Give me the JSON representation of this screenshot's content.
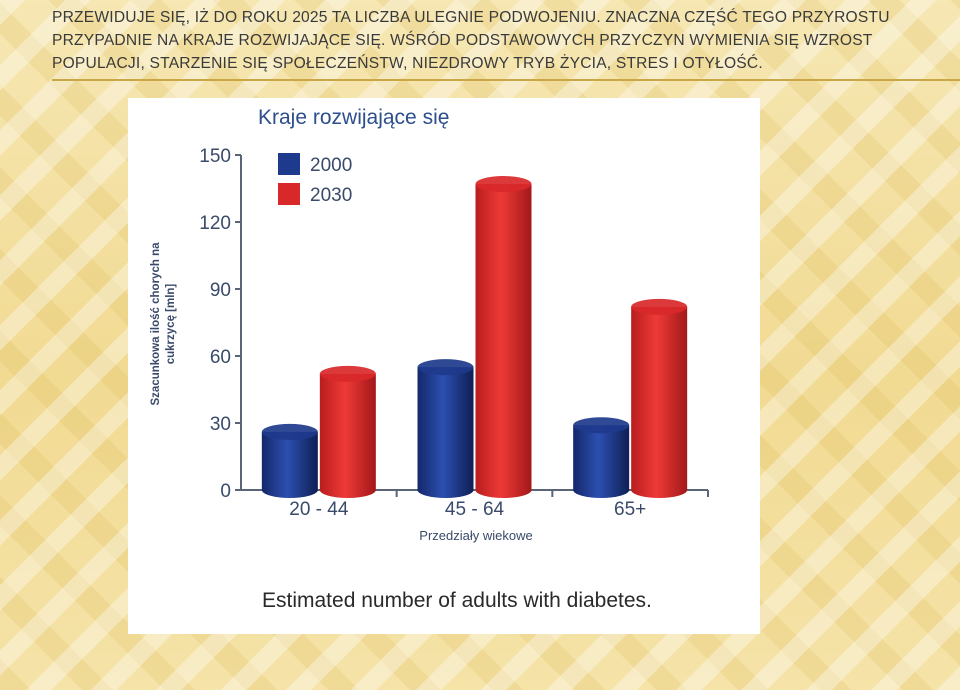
{
  "slide": {
    "title": "Przewiduje się, iż do roku 2025 ta liczba ulegnie podwojeniu. Znaczna część tego przyrostu przypadnie na kraje rozwijające się. Wśród podstawowych przyczyn wymienia się wzrost populacji, starzenie się społeczeństw, niezdrowy tryb życia, stres i otyłość."
  },
  "colors": {
    "series_2000": "#1e3a8c",
    "series_2030": "#d9282a",
    "axis": "#5a6678",
    "chart_title": "#2d4f8c",
    "axis_text": "#3a4a6a"
  },
  "chart_data": {
    "type": "bar",
    "title": "Kraje rozwijające się",
    "caption": "Estimated number of adults with diabetes.",
    "xlabel": "Przedziały wiekowe",
    "ylabel_lines": [
      "Szacunkowa ilość chorych na",
      "cukrzycę [mln]"
    ],
    "categories": [
      "20 - 44",
      "45 - 64",
      "65+"
    ],
    "ylim": [
      0,
      150
    ],
    "yticks": [
      0,
      30,
      60,
      90,
      120,
      150
    ],
    "grid": false,
    "legend": "top-left",
    "series": [
      {
        "name": "2000",
        "values": [
          26,
          55,
          29
        ]
      },
      {
        "name": "2030",
        "values": [
          52,
          137,
          82
        ]
      }
    ]
  }
}
